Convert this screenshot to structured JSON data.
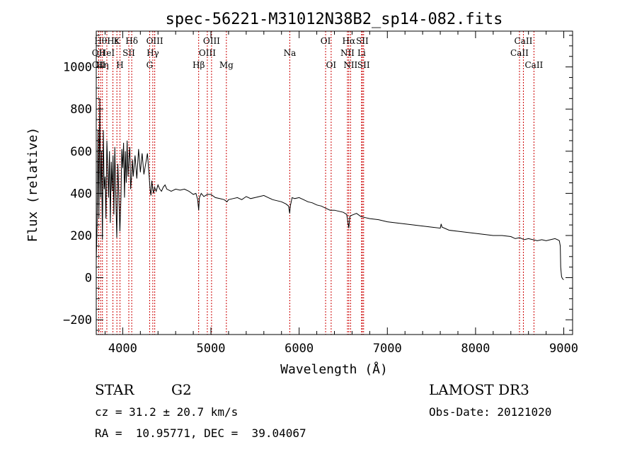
{
  "chart_data": {
    "type": "line",
    "title": "spec-56221-M31012N38B2_sp14-082.fits",
    "xlabel": "Wavelength (Å)",
    "ylabel": "Flux (relative)",
    "xlim": [
      3700,
      9100
    ],
    "ylim": [
      -270,
      1170
    ],
    "x_ticks": [
      4000,
      5000,
      6000,
      7000,
      8000,
      9000
    ],
    "y_ticks": [
      -200,
      0,
      200,
      400,
      600,
      800,
      1000
    ],
    "series": [
      {
        "name": "flux",
        "x": [
          3700,
          3710,
          3720,
          3730,
          3740,
          3750,
          3760,
          3770,
          3780,
          3790,
          3800,
          3810,
          3820,
          3830,
          3840,
          3850,
          3860,
          3870,
          3880,
          3890,
          3900,
          3910,
          3920,
          3933,
          3945,
          3955,
          3968,
          3980,
          3990,
          4000,
          4010,
          4020,
          4030,
          4040,
          4050,
          4060,
          4070,
          4080,
          4090,
          4102,
          4110,
          4120,
          4140,
          4160,
          4180,
          4200,
          4220,
          4240,
          4260,
          4280,
          4300,
          4310,
          4320,
          4330,
          4340,
          4350,
          4360,
          4380,
          4400,
          4420,
          4440,
          4460,
          4480,
          4500,
          4550,
          4600,
          4650,
          4700,
          4750,
          4800,
          4830,
          4850,
          4861,
          4870,
          4890,
          4920,
          4960,
          5000,
          5050,
          5100,
          5150,
          5183,
          5200,
          5250,
          5300,
          5350,
          5400,
          5450,
          5500,
          5550,
          5600,
          5650,
          5700,
          5750,
          5800,
          5850,
          5880,
          5893,
          5900,
          5920,
          5950,
          6000,
          6050,
          6100,
          6150,
          6200,
          6250,
          6300,
          6350,
          6400,
          6450,
          6500,
          6540,
          6563,
          6575,
          6590,
          6620,
          6650,
          6700,
          6750,
          6800,
          6900,
          7000,
          7100,
          7200,
          7300,
          7400,
          7500,
          7600,
          7610,
          7620,
          7700,
          7800,
          7900,
          8000,
          8100,
          8200,
          8300,
          8400,
          8450,
          8500,
          8550,
          8600,
          8650,
          8700,
          8750,
          8800,
          8850,
          8900,
          8930,
          8950,
          8960,
          8965,
          8975,
          8985,
          9000
        ],
        "y": [
          80,
          250,
          700,
          280,
          850,
          380,
          600,
          180,
          700,
          420,
          480,
          280,
          650,
          520,
          380,
          600,
          260,
          550,
          410,
          580,
          300,
          620,
          420,
          190,
          540,
          400,
          220,
          380,
          610,
          520,
          640,
          380,
          600,
          450,
          650,
          480,
          560,
          620,
          420,
          490,
          560,
          480,
          580,
          470,
          610,
          500,
          590,
          490,
          540,
          590,
          480,
          420,
          390,
          460,
          420,
          400,
          430,
          410,
          440,
          420,
          410,
          430,
          440,
          420,
          410,
          420,
          415,
          420,
          410,
          395,
          400,
          370,
          320,
          380,
          400,
          385,
          395,
          395,
          380,
          375,
          370,
          360,
          370,
          375,
          380,
          370,
          385,
          375,
          380,
          385,
          390,
          380,
          370,
          365,
          360,
          350,
          340,
          305,
          340,
          380,
          375,
          380,
          370,
          360,
          355,
          345,
          340,
          330,
          320,
          320,
          315,
          310,
          300,
          235,
          290,
          295,
          300,
          305,
          290,
          285,
          280,
          275,
          265,
          260,
          255,
          250,
          245,
          240,
          235,
          255,
          240,
          225,
          220,
          215,
          210,
          205,
          200,
          200,
          195,
          185,
          190,
          180,
          185,
          180,
          175,
          180,
          175,
          180,
          185,
          180,
          175,
          150,
          50,
          5,
          -5,
          -10
        ]
      }
    ],
    "lines": [
      {
        "label": "OII",
        "x": 3727,
        "row": 2
      },
      {
        "label": "Hθ",
        "x": 3750,
        "row": 1
      },
      {
        "label": "OII",
        "x": 3728,
        "row": 3
      },
      {
        "label": "Hη",
        "x": 3770,
        "row": 3
      },
      {
        "label": "HeI",
        "x": 3820,
        "row": 2
      },
      {
        "label": "Hε",
        "x": 3889,
        "row": 1
      },
      {
        "label": "K",
        "x": 3934,
        "row": 1
      },
      {
        "label": "SII",
        "x": 4069,
        "row": 2
      },
      {
        "label": "H",
        "x": 3969,
        "row": 3
      },
      {
        "label": "Hδ",
        "x": 4102,
        "row": 1
      },
      {
        "label": "OIII",
        "x": 4363,
        "row": 1
      },
      {
        "label": "Hγ",
        "x": 4341,
        "row": 2
      },
      {
        "label": "G",
        "x": 4305,
        "row": 3
      },
      {
        "label": "Hβ",
        "x": 4861,
        "row": 3
      },
      {
        "label": "OIII",
        "x": 5007,
        "row": 1
      },
      {
        "label": "OIII",
        "x": 4959,
        "row": 2
      },
      {
        "label": "Mg",
        "x": 5175,
        "row": 3
      },
      {
        "label": "Na",
        "x": 5894,
        "row": 2
      },
      {
        "label": "OI",
        "x": 6300,
        "row": 1
      },
      {
        "label": "OI",
        "x": 6363,
        "row": 3
      },
      {
        "label": "Hα",
        "x": 6563,
        "row": 1
      },
      {
        "label": "NII",
        "x": 6548,
        "row": 2
      },
      {
        "label": "NII",
        "x": 6583,
        "row": 3
      },
      {
        "label": "SII",
        "x": 6716,
        "row": 1
      },
      {
        "label": "Li",
        "x": 6708,
        "row": 2
      },
      {
        "label": "SII",
        "x": 6731,
        "row": 3
      },
      {
        "label": "CaII",
        "x": 8542,
        "row": 1
      },
      {
        "label": "CaII",
        "x": 8498,
        "row": 2
      },
      {
        "label": "CaII",
        "x": 8662,
        "row": 3
      }
    ],
    "colors": {
      "spectrum": "#000000",
      "line_markers": "#cc0000",
      "axes": "#000000"
    }
  },
  "footer": {
    "object_class": "STAR",
    "subclass": "G2",
    "survey": "LAMOST DR3",
    "redshift": "cz = 31.2 ± 20.7 km/s",
    "obs_date": "Obs-Date: 20121020",
    "coords": "RA =  10.95771, DEC =  39.04067"
  }
}
